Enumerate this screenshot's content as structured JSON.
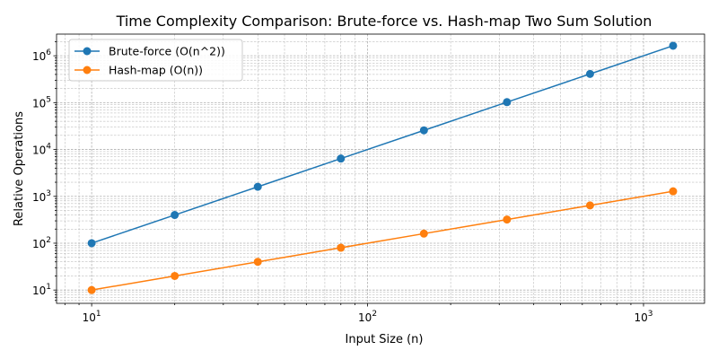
{
  "chart_data": {
    "type": "line",
    "title": "Time Complexity Comparison: Brute-force vs. Hash-map Two Sum Solution",
    "xlabel": "Input Size (n)",
    "ylabel": "Relative Operations",
    "xscale": "log",
    "yscale": "log",
    "xlim": [
      7.46,
      1664
    ],
    "ylim": [
      5.2,
      2900000
    ],
    "grid": "both",
    "legend_position": "top-left",
    "x": [
      10,
      20,
      40,
      80,
      160,
      320,
      640,
      1280
    ],
    "series": [
      {
        "name": "Brute-force (O(n^2))",
        "color": "#1f77b4",
        "values": [
          100,
          400,
          1600,
          6400,
          25600,
          102400,
          409600,
          1638400
        ]
      },
      {
        "name": "Hash-map (O(n))",
        "color": "#ff7f0e",
        "values": [
          10,
          20,
          40,
          80,
          160,
          320,
          640,
          1280
        ]
      }
    ],
    "xticks": [
      {
        "v": 10,
        "base": "10",
        "exp": "1"
      },
      {
        "v": 100,
        "base": "10",
        "exp": "2"
      },
      {
        "v": 1000,
        "base": "10",
        "exp": "3"
      }
    ],
    "yticks": [
      {
        "v": 10,
        "base": "10",
        "exp": "1"
      },
      {
        "v": 100,
        "base": "10",
        "exp": "2"
      },
      {
        "v": 1000,
        "base": "10",
        "exp": "3"
      },
      {
        "v": 10000,
        "base": "10",
        "exp": "4"
      },
      {
        "v": 100000,
        "base": "10",
        "exp": "5"
      },
      {
        "v": 1000000,
        "base": "10",
        "exp": "6"
      }
    ]
  }
}
